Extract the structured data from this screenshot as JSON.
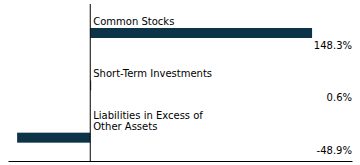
{
  "chart_data": {
    "type": "bar",
    "orientation": "horizontal",
    "categories": [
      "Common Stocks",
      "Short-Term Investments",
      "Liabilities in Excess of\nOther Assets"
    ],
    "values": [
      148.3,
      0.6,
      -48.9
    ],
    "value_labels": [
      "148.3%",
      "0.6%",
      "-48.9%"
    ],
    "data_labels": true,
    "color": "#0d3349",
    "xlim": [
      -55,
      175
    ],
    "xticks": [],
    "tick_labels": false,
    "grid": false
  }
}
